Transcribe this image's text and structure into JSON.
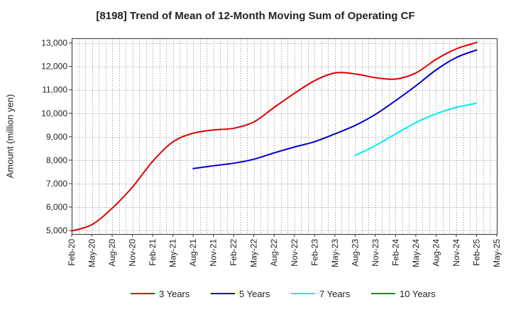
{
  "chart_data": {
    "type": "line",
    "title": "[8198]  Trend of Mean of 12-Month Moving Sum of Operating CF",
    "ylabel": "Amount (million yen)",
    "xlabel": "",
    "ylim": [
      4850,
      13200
    ],
    "yticks": [
      5000,
      6000,
      7000,
      8000,
      9000,
      10000,
      11000,
      12000,
      13000
    ],
    "ytick_labels": [
      "5,000",
      "6,000",
      "7,000",
      "8,000",
      "9,000",
      "10,000",
      "11,000",
      "12,000",
      "13,000"
    ],
    "x_tick_labels": [
      "Feb-20",
      "May-20",
      "Aug-20",
      "Nov-20",
      "Feb-21",
      "May-21",
      "Aug-21",
      "Nov-21",
      "Feb-22",
      "May-22",
      "Aug-22",
      "Nov-22",
      "Feb-23",
      "May-23",
      "Aug-23",
      "Nov-23",
      "Feb-24",
      "May-24",
      "Aug-24",
      "Nov-24",
      "Feb-25",
      "May-25"
    ],
    "x_range_months": [
      0,
      63
    ],
    "grid": true,
    "legend_position": "bottom",
    "series": [
      {
        "name": "3 Years",
        "color": "#dd0000",
        "x": [
          0,
          3,
          6,
          9,
          12,
          15,
          18,
          21,
          24,
          27,
          30,
          33,
          36,
          39,
          42,
          45,
          48,
          51,
          54,
          57,
          60
        ],
        "y": [
          4980,
          5250,
          5950,
          6850,
          7950,
          8780,
          9150,
          9290,
          9360,
          9630,
          10250,
          10850,
          11390,
          11720,
          11680,
          11520,
          11460,
          11720,
          12300,
          12750,
          13020
        ]
      },
      {
        "name": "5 Years",
        "color": "#0000cc",
        "x": [
          18,
          21,
          24,
          27,
          30,
          33,
          36,
          39,
          42,
          45,
          48,
          51,
          54,
          57,
          60
        ],
        "y": [
          7640,
          7760,
          7870,
          8040,
          8310,
          8560,
          8790,
          9120,
          9480,
          9950,
          10540,
          11170,
          11850,
          12380,
          12700
        ]
      },
      {
        "name": "7 Years",
        "color": "#00eeee",
        "x": [
          42,
          45,
          48,
          51,
          54,
          57,
          60
        ],
        "y": [
          8200,
          8620,
          9120,
          9600,
          9980,
          10250,
          10430
        ]
      },
      {
        "name": "10 Years",
        "color": "#228b22",
        "x": [],
        "y": []
      }
    ]
  }
}
